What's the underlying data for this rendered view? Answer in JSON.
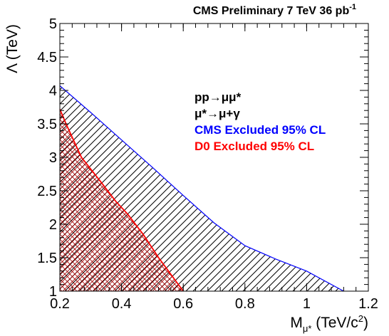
{
  "chart_data": {
    "type": "area",
    "title": "CMS Preliminary 7 TeV  36 pb",
    "title_superscript": "-1",
    "xlabel_main": "M",
    "xlabel_sub": "μ*",
    "xlabel_units": " (TeV/c",
    "xlabel_units_sup": "2",
    "xlabel_units_end": ")",
    "ylabel": "Λ (TeV)",
    "xlim": [
      0.2,
      1.2
    ],
    "ylim": [
      1,
      5
    ],
    "x_ticks": [
      "0.2",
      "0.4",
      "0.6",
      "0.8",
      "1",
      "1.2"
    ],
    "y_ticks": [
      "1",
      "1.5",
      "2",
      "2.5",
      "3",
      "3.5",
      "4",
      "4.5",
      "5"
    ],
    "grid": false,
    "legend_position": "top-right",
    "legend": {
      "process_line1": "pp→μμ*",
      "process_line2": "μ*→μ+γ",
      "entries": [
        "CMS Excluded 95% CL",
        "D0 Excluded 95% CL"
      ]
    },
    "series": [
      {
        "name": "CMS Excluded 95% CL",
        "color": "#0000ff",
        "x": [
          0.2,
          0.3,
          0.4,
          0.5,
          0.6,
          0.7,
          0.8,
          0.9,
          1.0,
          1.12
        ],
        "y": [
          4.07,
          3.67,
          3.26,
          2.85,
          2.43,
          2.02,
          1.68,
          1.48,
          1.3,
          1.0
        ]
      },
      {
        "name": "D0 Excluded 95% CL",
        "color": "#ff0000",
        "x": [
          0.2,
          0.22,
          0.27,
          0.33,
          0.38,
          0.42,
          0.47,
          0.52,
          0.56,
          0.6
        ],
        "y": [
          3.72,
          3.5,
          3.0,
          2.65,
          2.35,
          2.15,
          1.85,
          1.5,
          1.25,
          1.0
        ]
      }
    ]
  }
}
